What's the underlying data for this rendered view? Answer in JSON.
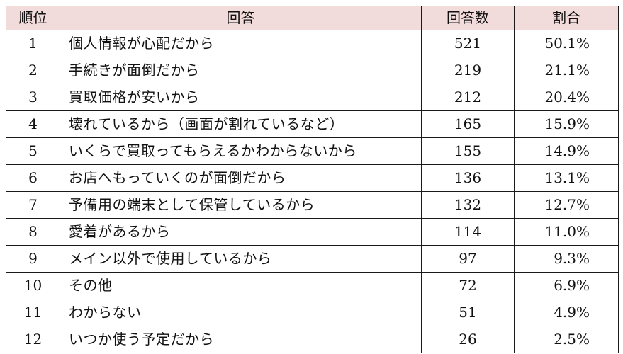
{
  "header": {
    "rank": "順位",
    "answer": "回答",
    "count": "回答数",
    "percent": "割合"
  },
  "rows": [
    {
      "rank": "1",
      "answer": "個人情報が心配だから",
      "count": "521",
      "percent": "50.1%"
    },
    {
      "rank": "2",
      "answer": "手続きが面倒だから",
      "count": "219",
      "percent": "21.1%"
    },
    {
      "rank": "3",
      "answer": "買取価格が安いから",
      "count": "212",
      "percent": "20.4%"
    },
    {
      "rank": "4",
      "answer": "壊れているから（画面が割れているなど）",
      "count": "165",
      "percent": "15.9%"
    },
    {
      "rank": "5",
      "answer": "いくらで買取ってもらえるかわからないから",
      "count": "155",
      "percent": "14.9%"
    },
    {
      "rank": "6",
      "answer": "お店へもっていくのが面倒だから",
      "count": "136",
      "percent": "13.1%"
    },
    {
      "rank": "7",
      "answer": "予備用の端末として保管しているから",
      "count": "132",
      "percent": "12.7%"
    },
    {
      "rank": "8",
      "answer": "愛着があるから",
      "count": "114",
      "percent": "11.0%"
    },
    {
      "rank": "9",
      "answer": "メイン以外で使用しているから",
      "count": "97",
      "percent": "9.3%"
    },
    {
      "rank": "10",
      "answer": "その他",
      "count": "72",
      "percent": "6.9%"
    },
    {
      "rank": "11",
      "answer": "わからない",
      "count": "51",
      "percent": "4.9%"
    },
    {
      "rank": "12",
      "answer": "いつか使う予定だから",
      "count": "26",
      "percent": "2.5%"
    }
  ],
  "colors": {
    "header_background": "#f2dcdb",
    "border": "#1a1a1a"
  }
}
